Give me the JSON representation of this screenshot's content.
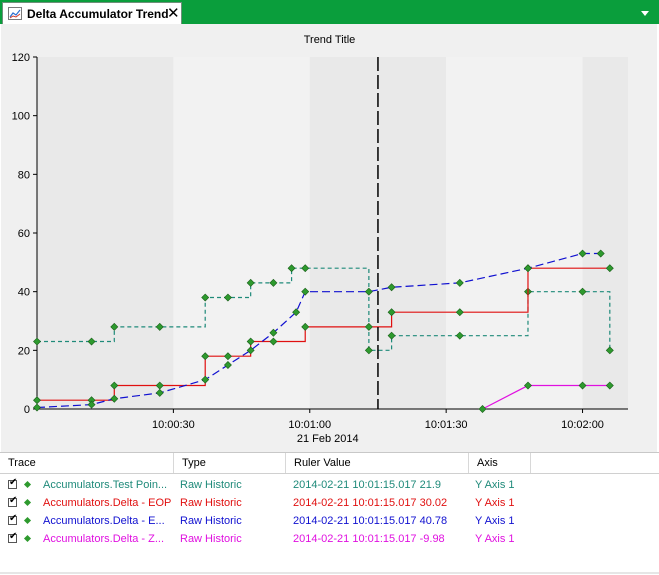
{
  "window": {
    "tab_title": "Delta Accumulator Trend",
    "close_glyph": "✕",
    "tab_icon": "trend-chart-icon",
    "menu_icon": "chevron-down-icon",
    "accent_color": "#0a9e3c"
  },
  "chart_data": {
    "type": "line",
    "title": "Trend Title",
    "date_label": "21 Feb 2014",
    "xlim": [
      "10:00:00",
      "10:02:10"
    ],
    "ylim": [
      0,
      120
    ],
    "y_ticks": [
      "0",
      "20",
      "40",
      "60",
      "80",
      "100",
      "120"
    ],
    "x_ticks": [
      "10:00:30",
      "10:01:00",
      "10:01:30",
      "10:02:00"
    ],
    "ruler_time": "10:01:15",
    "grid": false,
    "legend": "none",
    "series": [
      {
        "name": "Accumulators.Test Point",
        "color": "#1f8a7a",
        "style": "dashed-step",
        "x": [
          "10:00:00",
          "10:00:12",
          "10:00:17",
          "10:00:27",
          "10:00:37",
          "10:00:42",
          "10:00:47",
          "10:00:52",
          "10:00:56",
          "10:00:59",
          "10:01:13",
          "10:01:18",
          "10:01:33",
          "10:01:48",
          "10:02:00",
          "10:02:06"
        ],
        "y": [
          23,
          23,
          28,
          28,
          38,
          38,
          43,
          43,
          48,
          48,
          20,
          25,
          25,
          40,
          40,
          20
        ]
      },
      {
        "name": "Accumulators.Delta - EOP",
        "color": "#e01010",
        "style": "solid-step",
        "x": [
          "10:00:00",
          "10:00:12",
          "10:00:17",
          "10:00:27",
          "10:00:37",
          "10:00:42",
          "10:00:47",
          "10:00:52",
          "10:00:59",
          "10:01:13",
          "10:01:18",
          "10:01:33",
          "10:01:48",
          "10:02:06"
        ],
        "y": [
          3,
          3,
          8,
          8,
          18,
          18,
          23,
          23,
          28,
          28,
          33,
          33,
          48,
          48
        ]
      },
      {
        "name": "Accumulators.Delta - EOP (rate)",
        "color": "#1010d0",
        "style": "dashed",
        "x": [
          "10:00:00",
          "10:00:12",
          "10:00:17",
          "10:00:27",
          "10:00:37",
          "10:00:42",
          "10:00:47",
          "10:00:52",
          "10:00:57",
          "10:00:59",
          "10:01:13",
          "10:01:18",
          "10:01:33",
          "10:01:48",
          "10:02:00",
          "10:02:04"
        ],
        "y": [
          0.5,
          1.5,
          3.5,
          5.5,
          10,
          15,
          20,
          26,
          33,
          40,
          40,
          41.5,
          43,
          48,
          53,
          53
        ]
      },
      {
        "name": "Accumulators.Delta - Z",
        "color": "#e010e0",
        "style": "solid",
        "x": [
          "10:01:38",
          "10:01:48",
          "10:02:00",
          "10:02:06"
        ],
        "y": [
          0,
          8,
          8,
          8
        ]
      }
    ]
  },
  "trace_table": {
    "headers": [
      "Trace",
      "Type",
      "Ruler Value",
      "Axis"
    ],
    "rows": [
      {
        "checked": "✔",
        "trace": "Accumulators.Test Poin...",
        "type": "Raw Historic",
        "ruler": "2014-02-21 10:01:15.017  21.9",
        "axis": "Y Axis 1",
        "color": "#1f8a7a"
      },
      {
        "checked": "✔",
        "trace": "Accumulators.Delta - EOP",
        "type": "Raw Historic",
        "ruler": "2014-02-21 10:01:15.017  30.02",
        "axis": "Y Axis 1",
        "color": "#e01010"
      },
      {
        "checked": "✔",
        "trace": "Accumulators.Delta - E...",
        "type": "Raw Historic",
        "ruler": "2014-02-21 10:01:15.017  40.78",
        "axis": "Y Axis 1",
        "color": "#1010d0"
      },
      {
        "checked": "✔",
        "trace": "Accumulators.Delta - Z...",
        "type": "Raw Historic",
        "ruler": "2014-02-21 10:01:15.017  -9.98",
        "axis": "Y Axis 1",
        "color": "#e010e0"
      }
    ]
  }
}
